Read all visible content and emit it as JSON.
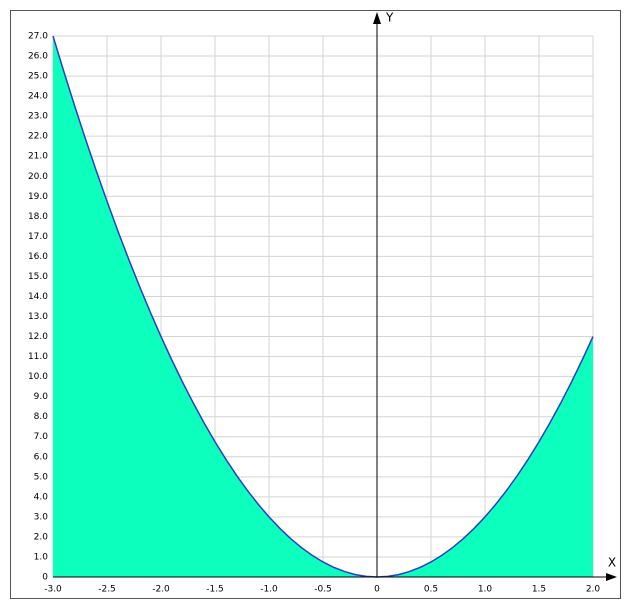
{
  "chart_data": {
    "type": "area",
    "x_label": "X",
    "y_label": "Y",
    "x": [
      -3.0,
      -2.9,
      -2.8,
      -2.7,
      -2.6,
      -2.5,
      -2.4,
      -2.3,
      -2.2,
      -2.1,
      -2.0,
      -1.9,
      -1.8,
      -1.7,
      -1.6,
      -1.5,
      -1.4,
      -1.3,
      -1.2,
      -1.1,
      -1.0,
      -0.9,
      -0.8,
      -0.7,
      -0.6,
      -0.5,
      -0.4,
      -0.3,
      -0.2,
      -0.1,
      0,
      0.1,
      0.2,
      0.3,
      0.4,
      0.5,
      0.6,
      0.7,
      0.8,
      0.9,
      1.0,
      1.1,
      1.2,
      1.3,
      1.4,
      1.5,
      1.6,
      1.7,
      1.8,
      1.9,
      2.0
    ],
    "values": [
      27,
      25.23,
      23.52,
      21.87,
      20.28,
      18.75,
      17.28,
      15.87,
      14.52,
      13.23,
      12,
      10.83,
      9.72,
      8.67,
      7.68,
      6.75,
      5.88,
      5.07,
      4.32,
      3.63,
      3,
      2.43,
      1.92,
      1.47,
      1.08,
      0.75,
      0.48,
      0.27,
      0.12,
      0.03,
      0,
      0.03,
      0.12,
      0.27,
      0.48,
      0.75,
      1.08,
      1.47,
      1.92,
      2.43,
      3,
      3.63,
      4.32,
      5.07,
      5.88,
      6.75,
      7.68,
      8.67,
      9.72,
      10.83,
      12
    ],
    "color": "#0dffbe",
    "line_color": "#2a3fc8",
    "xlim": [
      -3,
      2
    ],
    "ylim": [
      0,
      27
    ],
    "xticks": [
      {
        "value": -3,
        "label": "-3.0"
      },
      -2.5,
      {
        "value": -2,
        "label": "-2.0"
      },
      -1.5,
      {
        "value": -1,
        "label": "-1.0"
      },
      -0.5,
      0,
      0.5,
      {
        "value": 1,
        "label": "1.0"
      },
      1.5,
      {
        "value": 2,
        "label": "2.0"
      }
    ],
    "yticks": [
      0,
      {
        "value": 1,
        "label": "1.0"
      },
      {
        "value": 2,
        "label": "2.0"
      },
      {
        "value": 3,
        "label": "3.0"
      },
      {
        "value": 4,
        "label": "4.0"
      },
      {
        "value": 5,
        "label": "5.0"
      },
      {
        "value": 6,
        "label": "6.0"
      },
      {
        "value": 7,
        "label": "7.0"
      },
      {
        "value": 8,
        "label": "8.0"
      },
      {
        "value": 9,
        "label": "9.0"
      },
      {
        "value": 10,
        "label": "10.0"
      },
      {
        "value": 11,
        "label": "11.0"
      },
      {
        "value": 12,
        "label": "12.0"
      },
      {
        "value": 13,
        "label": "13.0"
      },
      {
        "value": 14,
        "label": "14.0"
      },
      {
        "value": 15,
        "label": "15.0"
      },
      {
        "value": 16,
        "label": "16.0"
      },
      {
        "value": 17,
        "label": "17.0"
      },
      {
        "value": 18,
        "label": "18.0"
      },
      {
        "value": 19,
        "label": "19.0"
      },
      {
        "value": 20,
        "label": "20.0"
      },
      {
        "value": 21,
        "label": "21.0"
      },
      {
        "value": 22,
        "label": "22.0"
      },
      {
        "value": 23,
        "label": "23.0"
      },
      {
        "value": 24,
        "label": "24.0"
      },
      {
        "value": 25,
        "label": "25.0"
      },
      {
        "value": 26,
        "label": "26.0"
      },
      {
        "value": 27,
        "label": "27.0"
      }
    ],
    "grid": true
  }
}
